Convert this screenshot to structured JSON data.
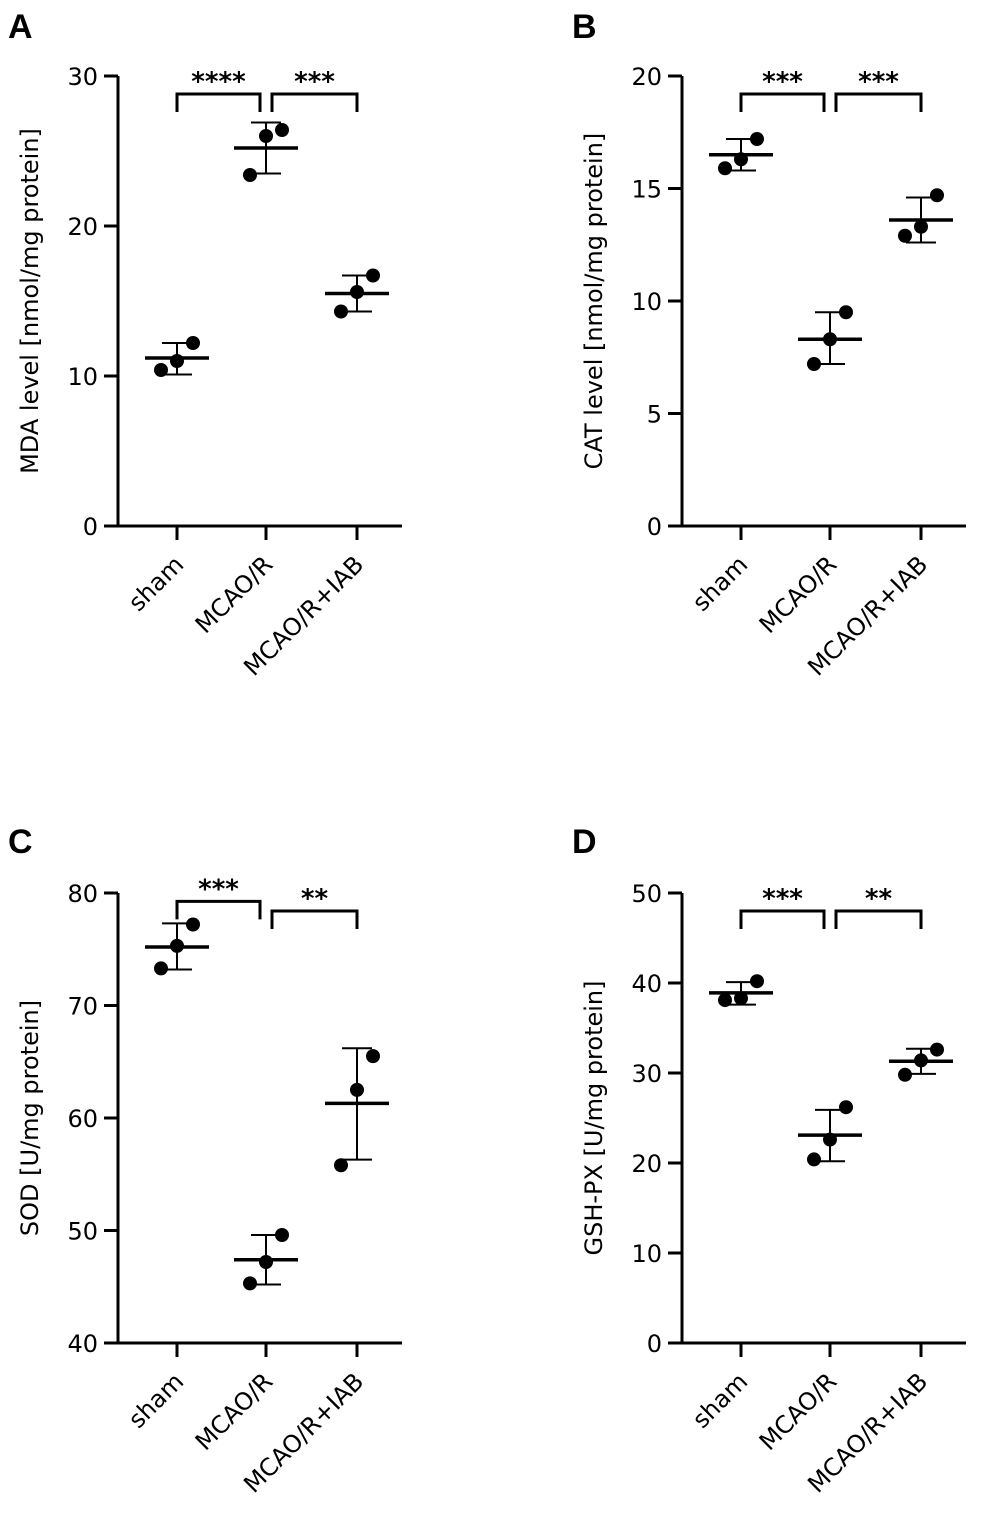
{
  "chart_data": [
    {
      "panel": "A",
      "type": "scatter",
      "ylabel": "MDA level [nmol/mg protein]",
      "ylim": [
        0,
        30
      ],
      "yticks": [
        0,
        10,
        20,
        30
      ],
      "categories": [
        "sham",
        "MCAO/R",
        "MCAO/R+IAB"
      ],
      "groups": [
        {
          "points": [
            10.4,
            11.0,
            12.2
          ],
          "mean": 11.2,
          "sd_low": 10.1,
          "sd_high": 12.2
        },
        {
          "points": [
            23.4,
            26.0,
            26.4
          ],
          "mean": 25.2,
          "sd_low": 23.5,
          "sd_high": 26.9
        },
        {
          "points": [
            14.3,
            15.6,
            16.7
          ],
          "mean": 15.5,
          "sd_low": 14.3,
          "sd_high": 16.7
        }
      ],
      "significance": [
        {
          "from": 0,
          "to": 1,
          "label": "****"
        },
        {
          "from": 1,
          "to": 2,
          "label": "***"
        }
      ]
    },
    {
      "panel": "B",
      "type": "scatter",
      "ylabel": "CAT level [nmol/mg protein]",
      "ylim": [
        0,
        20
      ],
      "yticks": [
        0,
        5,
        10,
        15,
        20
      ],
      "categories": [
        "sham",
        "MCAO/R",
        "MCAO/R+IAB"
      ],
      "groups": [
        {
          "points": [
            15.9,
            16.3,
            17.2
          ],
          "mean": 16.5,
          "sd_low": 15.8,
          "sd_high": 17.2
        },
        {
          "points": [
            7.2,
            8.3,
            9.5
          ],
          "mean": 8.3,
          "sd_low": 7.2,
          "sd_high": 9.5
        },
        {
          "points": [
            12.9,
            13.3,
            14.7
          ],
          "mean": 13.6,
          "sd_low": 12.6,
          "sd_high": 14.6
        }
      ],
      "significance": [
        {
          "from": 0,
          "to": 1,
          "label": "***"
        },
        {
          "from": 1,
          "to": 2,
          "label": "***"
        }
      ]
    },
    {
      "panel": "C",
      "type": "scatter",
      "ylabel": "SOD [U/mg protein]",
      "ylim": [
        40,
        80
      ],
      "yticks": [
        40,
        50,
        60,
        70,
        80
      ],
      "categories": [
        "sham",
        "MCAO/R",
        "MCAO/R+IAB"
      ],
      "groups": [
        {
          "points": [
            73.3,
            75.3,
            77.2
          ],
          "mean": 75.2,
          "sd_low": 73.2,
          "sd_high": 77.3
        },
        {
          "points": [
            45.3,
            47.2,
            49.6
          ],
          "mean": 47.4,
          "sd_low": 45.2,
          "sd_high": 49.6
        },
        {
          "points": [
            55.8,
            62.5,
            65.5
          ],
          "mean": 61.3,
          "sd_low": 56.3,
          "sd_high": 66.2
        }
      ],
      "significance": [
        {
          "from": 0,
          "to": 1,
          "label": "***"
        },
        {
          "from": 1,
          "to": 2,
          "label": "**"
        }
      ]
    },
    {
      "panel": "D",
      "type": "scatter",
      "ylabel": "GSH-PX [U/mg protein]",
      "ylim": [
        0,
        50
      ],
      "yticks": [
        0,
        10,
        20,
        30,
        40,
        50
      ],
      "categories": [
        "sham",
        "MCAO/R",
        "MCAO/R+IAB"
      ],
      "groups": [
        {
          "points": [
            38.1,
            38.3,
            40.2
          ],
          "mean": 38.9,
          "sd_low": 37.6,
          "sd_high": 40.1
        },
        {
          "points": [
            20.4,
            22.6,
            26.2
          ],
          "mean": 23.1,
          "sd_low": 20.2,
          "sd_high": 25.9
        },
        {
          "points": [
            29.8,
            31.4,
            32.6
          ],
          "mean": 31.3,
          "sd_low": 29.9,
          "sd_high": 32.7
        }
      ],
      "significance": [
        {
          "from": 0,
          "to": 1,
          "label": "***"
        },
        {
          "from": 1,
          "to": 2,
          "label": "**"
        }
      ]
    }
  ]
}
